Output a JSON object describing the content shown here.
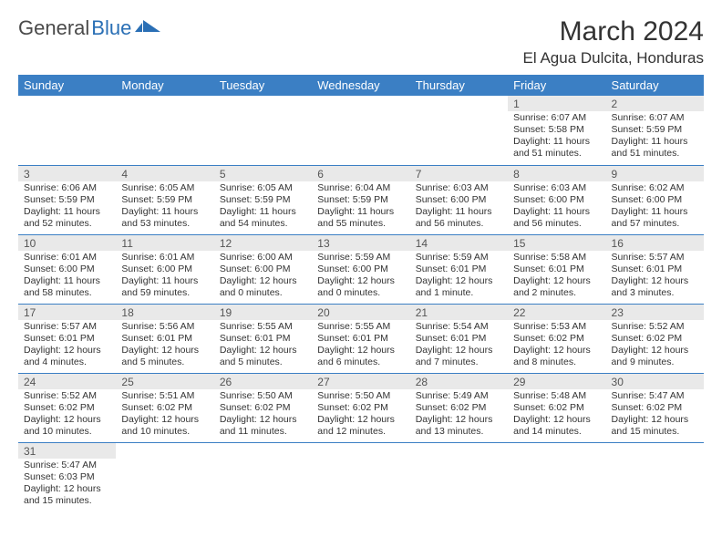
{
  "logo": {
    "textDark": "General",
    "textBlue": "Blue"
  },
  "title": "March 2024",
  "location": "El Agua Dulcita, Honduras",
  "colors": {
    "headerBg": "#3b7fc4",
    "headerText": "#ffffff",
    "dayNumBg": "#e9e9e9",
    "borderColor": "#3b7fc4",
    "bodyText": "#333333",
    "logoBlue": "#2a6fb5"
  },
  "typography": {
    "title_fontsize": 30,
    "location_fontsize": 17,
    "header_fontsize": 13,
    "daynum_fontsize": 12,
    "content_fontsize": 10.5
  },
  "weekdays": [
    "Sunday",
    "Monday",
    "Tuesday",
    "Wednesday",
    "Thursday",
    "Friday",
    "Saturday"
  ],
  "days": {
    "1": {
      "sunrise": "6:07 AM",
      "sunset": "5:58 PM",
      "daylight": "11 hours and 51 minutes."
    },
    "2": {
      "sunrise": "6:07 AM",
      "sunset": "5:59 PM",
      "daylight": "11 hours and 51 minutes."
    },
    "3": {
      "sunrise": "6:06 AM",
      "sunset": "5:59 PM",
      "daylight": "11 hours and 52 minutes."
    },
    "4": {
      "sunrise": "6:05 AM",
      "sunset": "5:59 PM",
      "daylight": "11 hours and 53 minutes."
    },
    "5": {
      "sunrise": "6:05 AM",
      "sunset": "5:59 PM",
      "daylight": "11 hours and 54 minutes."
    },
    "6": {
      "sunrise": "6:04 AM",
      "sunset": "5:59 PM",
      "daylight": "11 hours and 55 minutes."
    },
    "7": {
      "sunrise": "6:03 AM",
      "sunset": "6:00 PM",
      "daylight": "11 hours and 56 minutes."
    },
    "8": {
      "sunrise": "6:03 AM",
      "sunset": "6:00 PM",
      "daylight": "11 hours and 56 minutes."
    },
    "9": {
      "sunrise": "6:02 AM",
      "sunset": "6:00 PM",
      "daylight": "11 hours and 57 minutes."
    },
    "10": {
      "sunrise": "6:01 AM",
      "sunset": "6:00 PM",
      "daylight": "11 hours and 58 minutes."
    },
    "11": {
      "sunrise": "6:01 AM",
      "sunset": "6:00 PM",
      "daylight": "11 hours and 59 minutes."
    },
    "12": {
      "sunrise": "6:00 AM",
      "sunset": "6:00 PM",
      "daylight": "12 hours and 0 minutes."
    },
    "13": {
      "sunrise": "5:59 AM",
      "sunset": "6:00 PM",
      "daylight": "12 hours and 0 minutes."
    },
    "14": {
      "sunrise": "5:59 AM",
      "sunset": "6:01 PM",
      "daylight": "12 hours and 1 minute."
    },
    "15": {
      "sunrise": "5:58 AM",
      "sunset": "6:01 PM",
      "daylight": "12 hours and 2 minutes."
    },
    "16": {
      "sunrise": "5:57 AM",
      "sunset": "6:01 PM",
      "daylight": "12 hours and 3 minutes."
    },
    "17": {
      "sunrise": "5:57 AM",
      "sunset": "6:01 PM",
      "daylight": "12 hours and 4 minutes."
    },
    "18": {
      "sunrise": "5:56 AM",
      "sunset": "6:01 PM",
      "daylight": "12 hours and 5 minutes."
    },
    "19": {
      "sunrise": "5:55 AM",
      "sunset": "6:01 PM",
      "daylight": "12 hours and 5 minutes."
    },
    "20": {
      "sunrise": "5:55 AM",
      "sunset": "6:01 PM",
      "daylight": "12 hours and 6 minutes."
    },
    "21": {
      "sunrise": "5:54 AM",
      "sunset": "6:01 PM",
      "daylight": "12 hours and 7 minutes."
    },
    "22": {
      "sunrise": "5:53 AM",
      "sunset": "6:02 PM",
      "daylight": "12 hours and 8 minutes."
    },
    "23": {
      "sunrise": "5:52 AM",
      "sunset": "6:02 PM",
      "daylight": "12 hours and 9 minutes."
    },
    "24": {
      "sunrise": "5:52 AM",
      "sunset": "6:02 PM",
      "daylight": "12 hours and 10 minutes."
    },
    "25": {
      "sunrise": "5:51 AM",
      "sunset": "6:02 PM",
      "daylight": "12 hours and 10 minutes."
    },
    "26": {
      "sunrise": "5:50 AM",
      "sunset": "6:02 PM",
      "daylight": "12 hours and 11 minutes."
    },
    "27": {
      "sunrise": "5:50 AM",
      "sunset": "6:02 PM",
      "daylight": "12 hours and 12 minutes."
    },
    "28": {
      "sunrise": "5:49 AM",
      "sunset": "6:02 PM",
      "daylight": "12 hours and 13 minutes."
    },
    "29": {
      "sunrise": "5:48 AM",
      "sunset": "6:02 PM",
      "daylight": "12 hours and 14 minutes."
    },
    "30": {
      "sunrise": "5:47 AM",
      "sunset": "6:02 PM",
      "daylight": "12 hours and 15 minutes."
    },
    "31": {
      "sunrise": "5:47 AM",
      "sunset": "6:03 PM",
      "daylight": "12 hours and 15 minutes."
    }
  },
  "labels": {
    "sunrise": "Sunrise:",
    "sunset": "Sunset:",
    "daylight": "Daylight:"
  },
  "grid": {
    "startWeekday": 5,
    "numDays": 31
  }
}
